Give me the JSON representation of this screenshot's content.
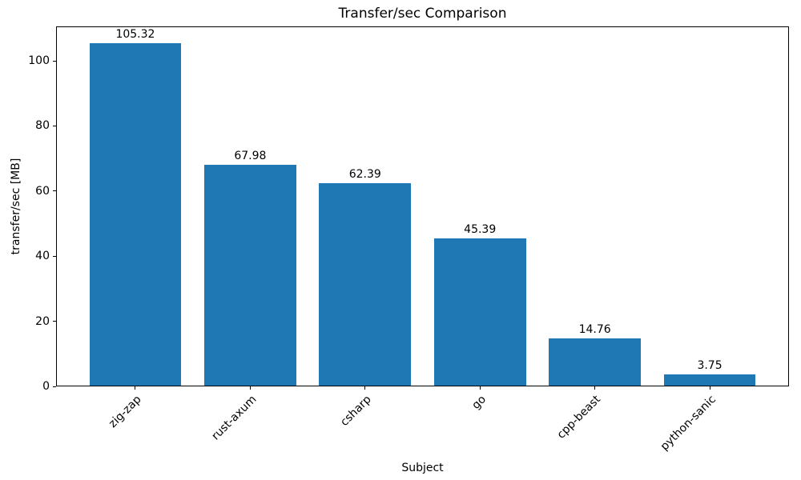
{
  "chart_data": {
    "type": "bar",
    "title": "Transfer/sec Comparison",
    "xlabel": "Subject",
    "ylabel": "transfer/sec [MB]",
    "categories": [
      "zig-zap",
      "rust-axum",
      "csharp",
      "go",
      "cpp-beast",
      "python-sanic"
    ],
    "values": [
      105.32,
      67.98,
      62.39,
      45.39,
      14.76,
      3.75
    ],
    "bar_labels": [
      "105.32",
      "67.98",
      "62.39",
      "45.39",
      "14.76",
      "3.75"
    ],
    "bar_color": "#1f77b4",
    "text_color": "#000000",
    "ylim": [
      0,
      110.59
    ],
    "yticks": [
      0,
      20,
      40,
      60,
      80,
      100
    ],
    "xtick_rotation_deg": 45,
    "grid": false,
    "legend_position": "none"
  }
}
